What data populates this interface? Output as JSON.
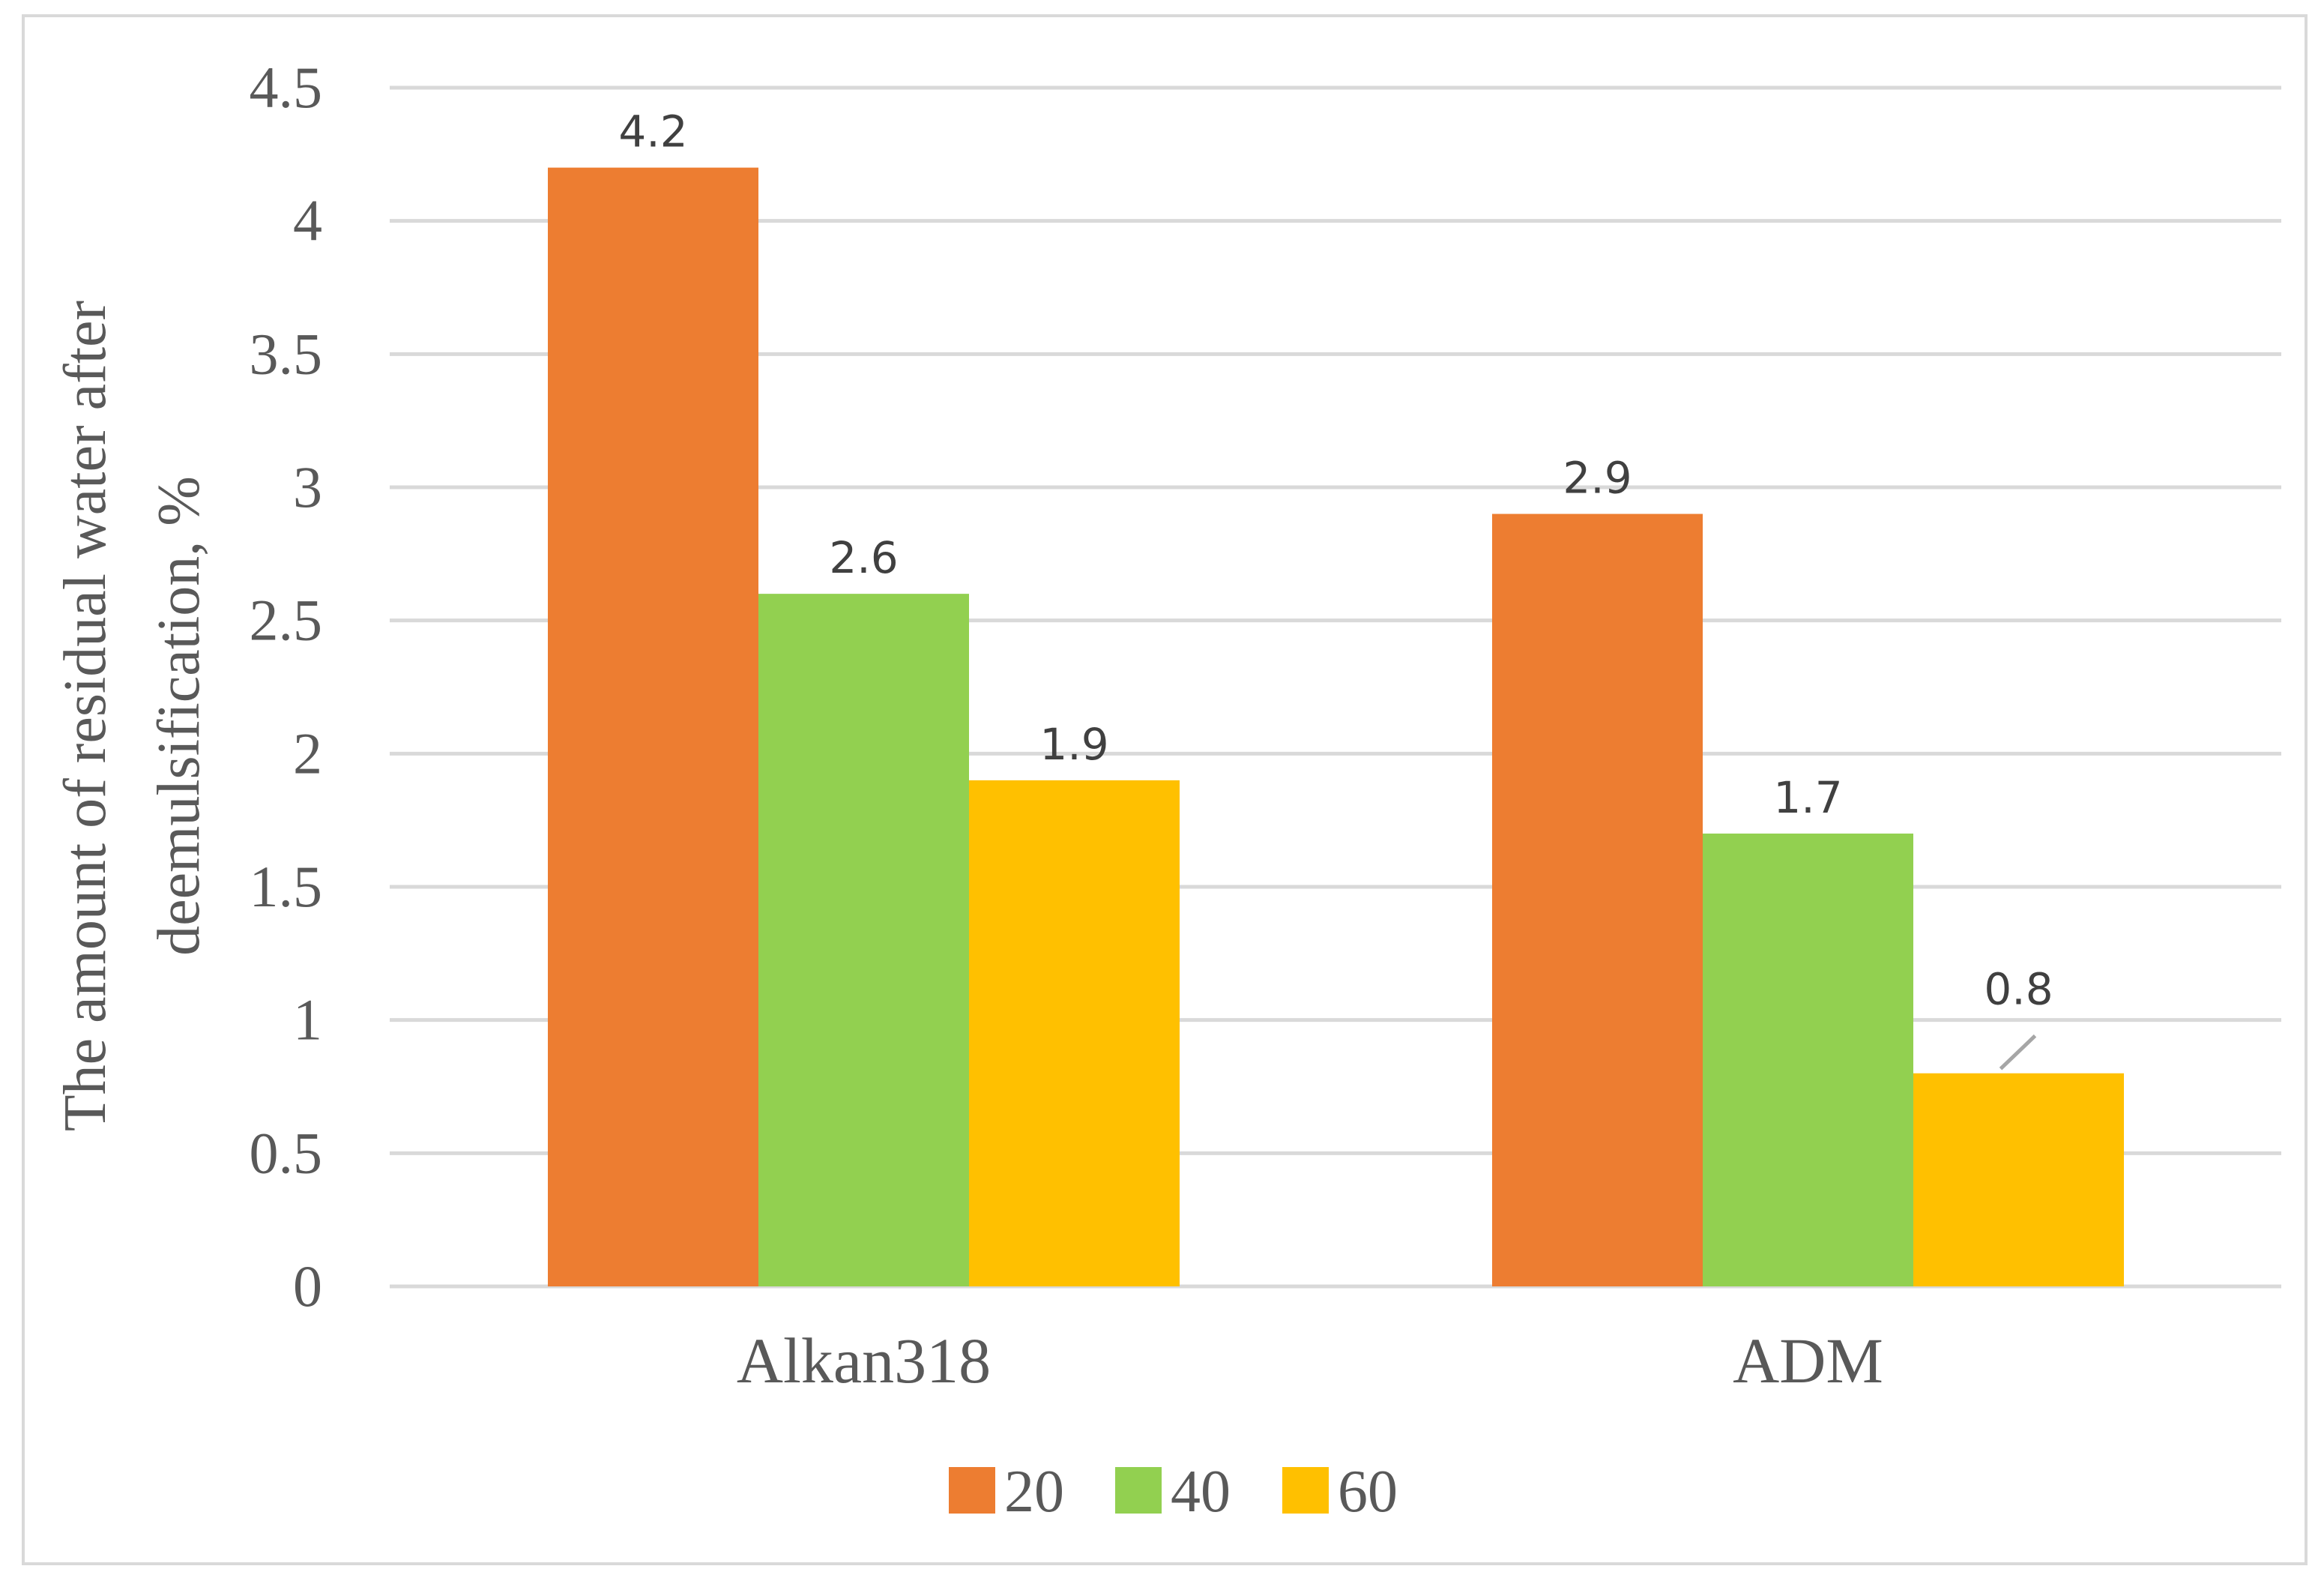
{
  "chart_data": {
    "type": "bar",
    "categories": [
      "Alkan318",
      "ADM"
    ],
    "series": [
      {
        "name": "20",
        "values": [
          4.2,
          2.9
        ],
        "color": "#ED7D31"
      },
      {
        "name": "40",
        "values": [
          2.6,
          1.7
        ],
        "color": "#92D050"
      },
      {
        "name": "60",
        "values": [
          1.9,
          0.8
        ],
        "color": "#FFC000"
      }
    ],
    "data_labels": [
      [
        "4.2",
        "2.9"
      ],
      [
        "2.6",
        "1.7"
      ],
      [
        "1.9",
        "0.8"
      ]
    ],
    "y_ticks": [
      "0",
      "0.5",
      "1",
      "1.5",
      "2",
      "2.5",
      "3",
      "3.5",
      "4",
      "4.5"
    ],
    "ylim": [
      0,
      4.5
    ],
    "ylabel_lines": [
      "The amount of residual water after",
      "deemulsification, %"
    ],
    "title": "",
    "xlabel": "",
    "grid": true,
    "legend_position": "bottom",
    "colors": {
      "grid": "#D9D9D9",
      "frame": "#D9D9D9",
      "text": "#595959",
      "leader": "#A6A6A6"
    }
  }
}
